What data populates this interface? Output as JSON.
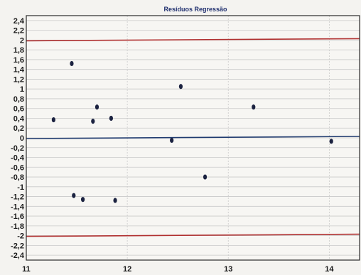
{
  "chart_data": {
    "type": "scatter",
    "title": "Resíduos Regressão",
    "xlabel": "",
    "ylabel": "",
    "xlim": [
      11,
      14.3
    ],
    "ylim": [
      -2.5,
      2.5
    ],
    "x_ticks": [
      11,
      12,
      13,
      14
    ],
    "x_tick_labels": [
      "11",
      "12",
      "13",
      "14"
    ],
    "y_ticks": [
      2.4,
      2.2,
      2,
      1.8,
      1.6,
      1.4,
      1.2,
      1,
      0.8,
      0.6,
      0.4,
      0.2,
      0,
      -0.2,
      -0.4,
      -0.6,
      -0.8,
      -1,
      -1.2,
      -1.4,
      -1.6,
      -1.8,
      -2,
      -2.2,
      -2.4
    ],
    "y_tick_labels": [
      "2,4",
      "2,2",
      "2",
      "1,8",
      "1,6",
      "1,4",
      "1,2",
      "1",
      "0,8",
      "0,6",
      "0,4",
      "0,2",
      "0",
      "-0,2",
      "-0,4",
      "-0,6",
      "-0,8",
      "-1",
      "-1,2",
      "-1,4",
      "-1,6",
      "-1,8",
      "-2",
      "-2,2",
      "-2,4"
    ],
    "grid": true,
    "reference_lines": [
      {
        "y": 2,
        "color": "#b03030"
      },
      {
        "y": 0,
        "color": "#1f3a6e"
      },
      {
        "y": -2,
        "color": "#b03030"
      }
    ],
    "points": [
      {
        "x": 11.27,
        "y": 0.37
      },
      {
        "x": 11.45,
        "y": 1.52
      },
      {
        "x": 11.47,
        "y": -1.18
      },
      {
        "x": 11.56,
        "y": -1.26
      },
      {
        "x": 11.66,
        "y": 0.34
      },
      {
        "x": 11.7,
        "y": 0.63
      },
      {
        "x": 11.84,
        "y": 0.4
      },
      {
        "x": 11.88,
        "y": -1.28
      },
      {
        "x": 12.44,
        "y": -0.05
      },
      {
        "x": 12.53,
        "y": 1.05
      },
      {
        "x": 12.77,
        "y": -0.8
      },
      {
        "x": 13.25,
        "y": 0.63
      },
      {
        "x": 14.02,
        "y": -0.07
      }
    ],
    "point_color": "#1b2240",
    "grid_color": "#c9c9c9"
  }
}
